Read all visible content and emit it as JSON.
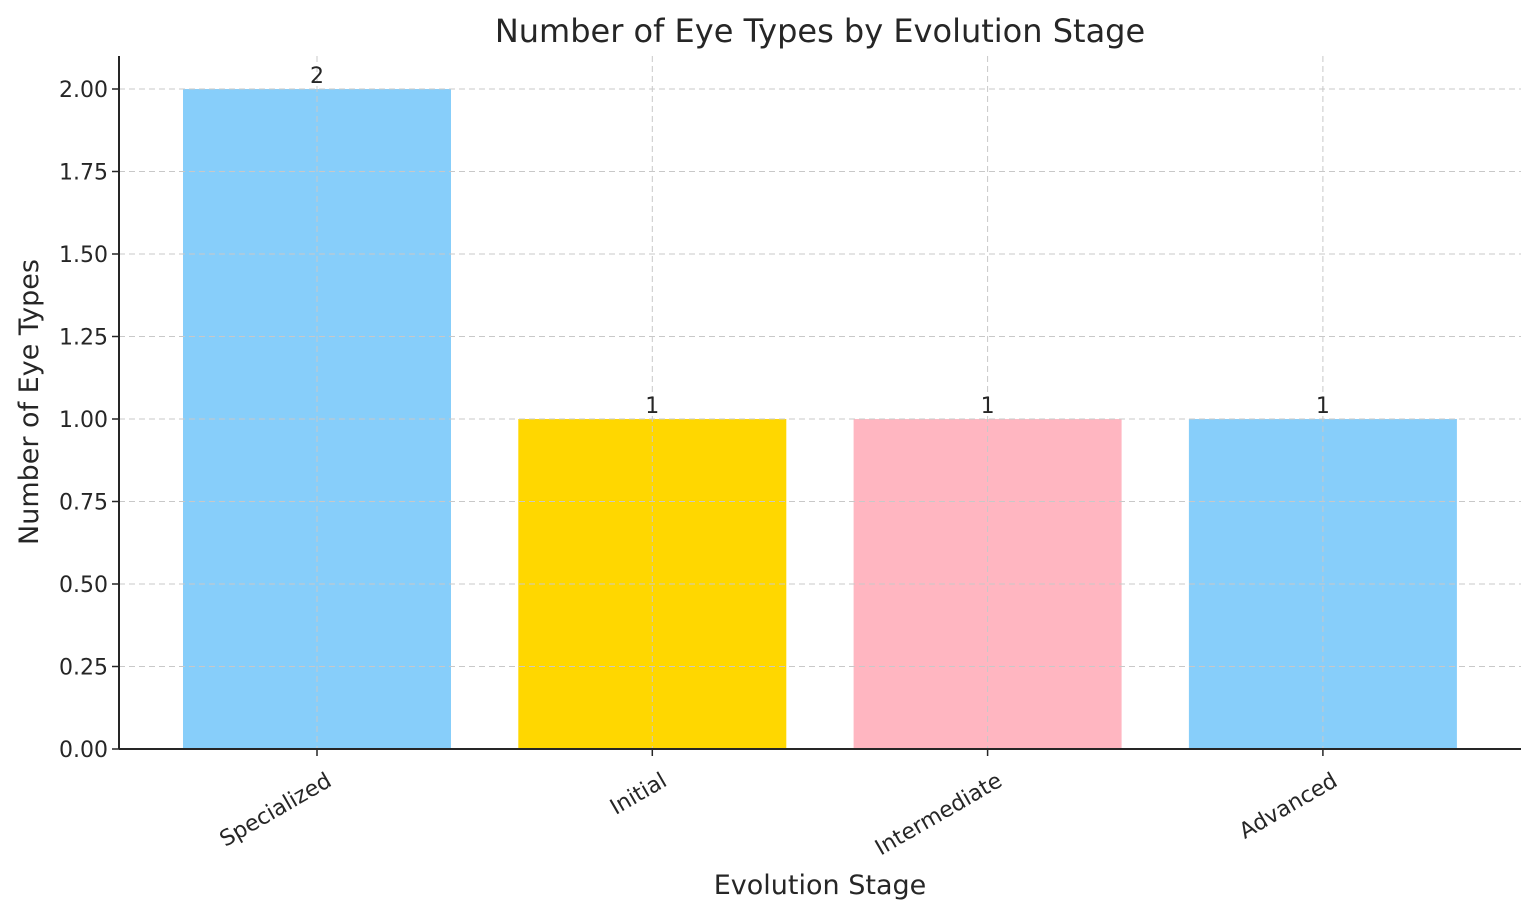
{
  "chart_data": {
    "type": "bar",
    "title": "Number of Eye Types by Evolution Stage",
    "xlabel": "Evolution Stage",
    "ylabel": "Number of Eye Types",
    "categories": [
      "Specialized",
      "Initial",
      "Intermediate",
      "Advanced"
    ],
    "values": [
      2,
      1,
      1,
      1
    ],
    "data_labels": [
      "2",
      "1",
      "1",
      "1"
    ],
    "colors": [
      "#87cefa",
      "#ffd700",
      "#ffb6c1",
      "#87cefa"
    ],
    "ylim": [
      0,
      2.1
    ],
    "yticks": [
      0,
      0.25,
      0.5,
      0.75,
      1.0,
      1.25,
      1.5,
      1.75,
      2.0
    ],
    "ytick_labels": [
      "0.00",
      "0.25",
      "0.50",
      "0.75",
      "1.00",
      "1.25",
      "1.50",
      "1.75",
      "2.00"
    ],
    "grid": true,
    "legend": false
  }
}
